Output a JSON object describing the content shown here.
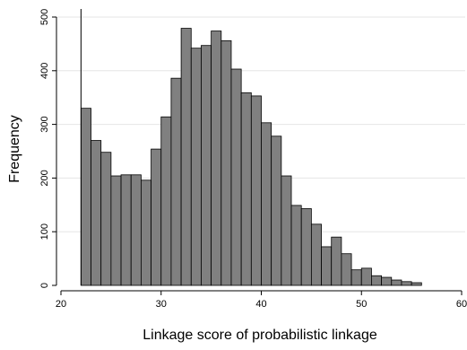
{
  "chart_data": {
    "type": "bar",
    "xlabel": "Linkage score of probabilistic linkage",
    "ylabel": "Frequency",
    "xlim": [
      20,
      60
    ],
    "ylim": [
      0,
      500
    ],
    "xticks": [
      20,
      30,
      40,
      50,
      60
    ],
    "yticks": [
      0,
      100,
      200,
      300,
      400,
      500
    ],
    "grid": true,
    "bin_width": 1,
    "threshold_line": 22,
    "bar_color": "#808080",
    "x": [
      22.5,
      23.5,
      24.5,
      25.5,
      26.5,
      27.5,
      28.5,
      29.5,
      30.5,
      31.5,
      32.5,
      33.5,
      34.5,
      35.5,
      36.5,
      37.5,
      38.5,
      39.5,
      40.5,
      41.5,
      42.5,
      43.5,
      44.5,
      45.5,
      46.5,
      47.5,
      48.5,
      49.5,
      50.5,
      51.5,
      52.5,
      53.5,
      54.5,
      55.5
    ],
    "values": [
      330,
      270,
      248,
      204,
      206,
      206,
      196,
      254,
      314,
      386,
      479,
      442,
      447,
      474,
      456,
      403,
      359,
      353,
      303,
      278,
      204,
      149,
      143,
      114,
      72,
      90,
      59,
      29,
      32,
      18,
      15,
      10,
      7,
      5
    ]
  }
}
